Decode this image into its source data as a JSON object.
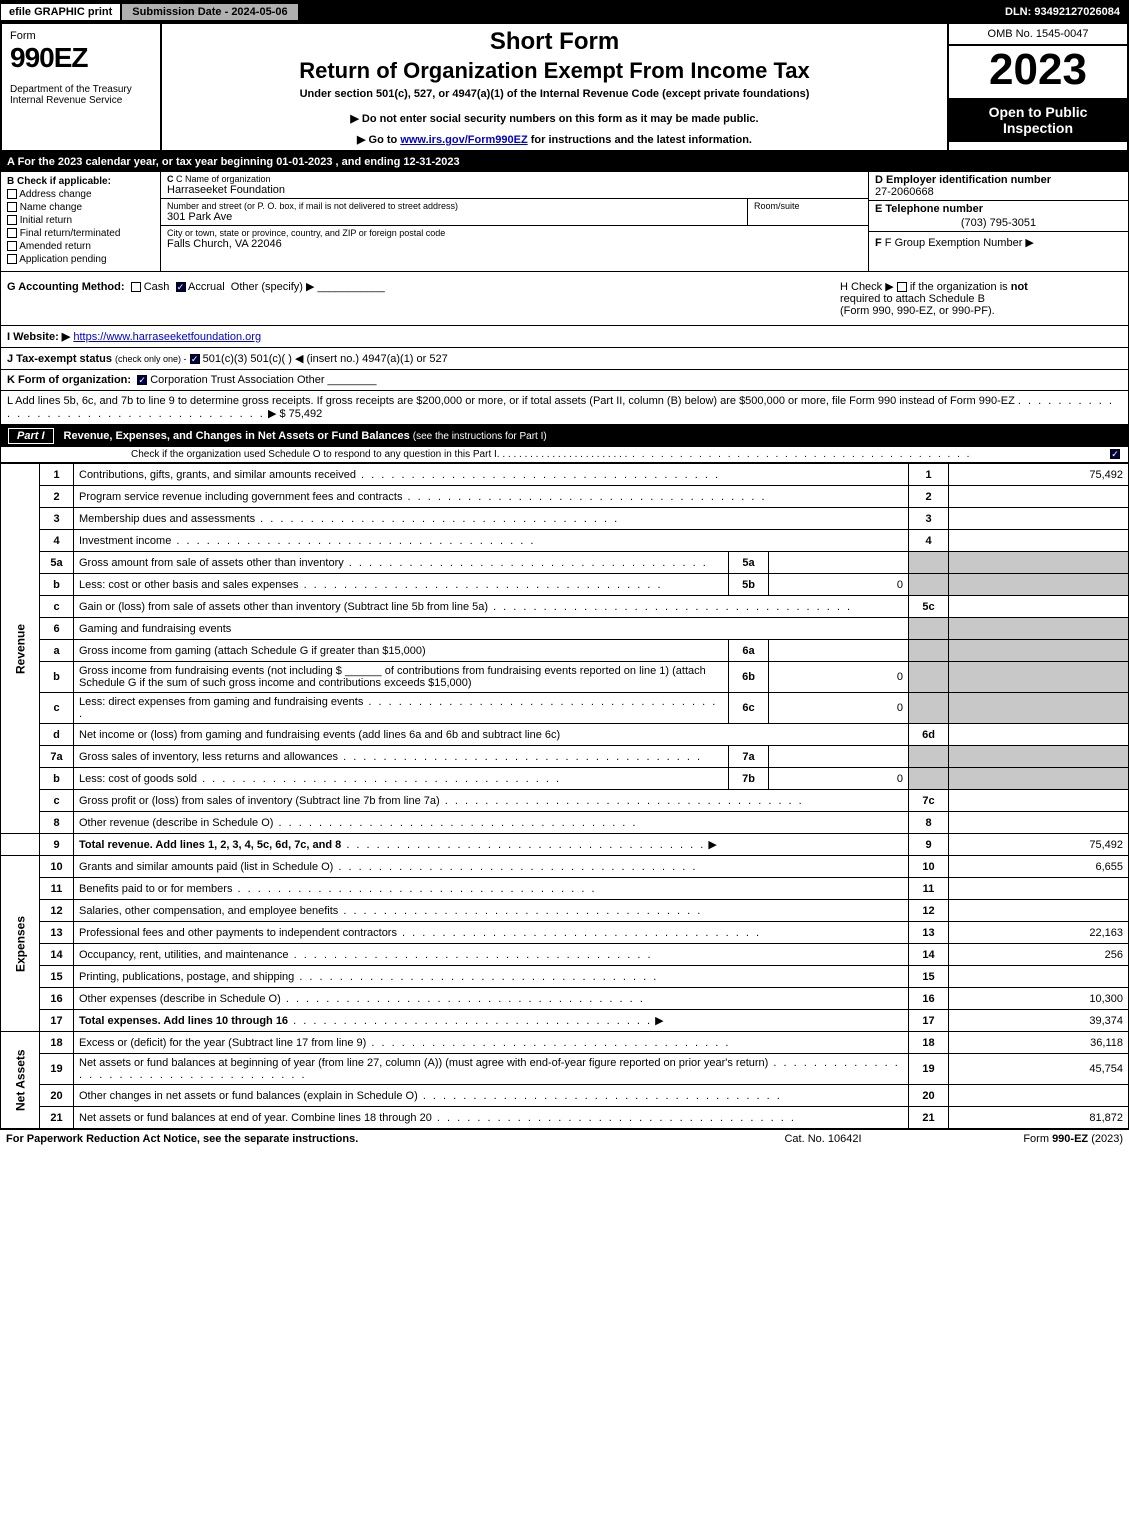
{
  "topbar": {
    "efile": "efile GRAPHIC print",
    "submission": "Submission Date - 2024-05-06",
    "dln": "DLN: 93492127026084"
  },
  "header": {
    "form_word": "Form",
    "form_num": "990EZ",
    "dept": "Department of the Treasury\nInternal Revenue Service",
    "short_form": "Short Form",
    "return_title": "Return of Organization Exempt From Income Tax",
    "under_section": "Under section 501(c), 527, or 4947(a)(1) of the Internal Revenue Code (except private foundations)",
    "donot": "Do not enter social security numbers on this form as it may be made public.",
    "goto_pre": "Go to ",
    "goto_link": "www.irs.gov/Form990EZ",
    "goto_post": " for instructions and the latest information.",
    "omb": "OMB No. 1545-0047",
    "year": "2023",
    "open": "Open to Public Inspection"
  },
  "row_a": "A  For the 2023 calendar year, or tax year beginning 01-01-2023 , and ending 12-31-2023",
  "sec_b": {
    "title": "B  Check if applicable:",
    "opts": [
      "Address change",
      "Name change",
      "Initial return",
      "Final return/terminated",
      "Amended return",
      "Application pending"
    ]
  },
  "sec_c": {
    "name_label": "C Name of organization",
    "name": "Harraseeket Foundation",
    "street_label": "Number and street (or P. O. box, if mail is not delivered to street address)",
    "street": "301 Park Ave",
    "room_label": "Room/suite",
    "city_label": "City or town, state or province, country, and ZIP or foreign postal code",
    "city": "Falls Church, VA  22046"
  },
  "sec_d": {
    "label": "D Employer identification number",
    "value": "27-2060668"
  },
  "sec_e": {
    "label": "E Telephone number",
    "value": "(703) 795-3051"
  },
  "sec_f": {
    "label": "F Group Exemption Number  ▶"
  },
  "sec_g": {
    "label": "G Accounting Method:",
    "cash": "Cash",
    "accrual": "Accrual",
    "other": "Other (specify) ▶"
  },
  "sec_h": {
    "text1": "H  Check ▶",
    "text2": "if the organization is",
    "text3": "not",
    "text4": "required to attach Schedule B",
    "text5": "(Form 990, 990-EZ, or 990-PF)."
  },
  "sec_i": {
    "label": "I Website: ▶",
    "url": "https://www.harraseeketfoundation.org"
  },
  "sec_j": {
    "label": "J Tax-exempt status",
    "sub": "(check only one) -",
    "opts": "501(c)(3)    501(c)(  ) ◀ (insert no.)    4947(a)(1) or    527"
  },
  "sec_k": {
    "label": "K Form of organization:",
    "opts": "Corporation    Trust    Association    Other"
  },
  "sec_l": {
    "text": "L Add lines 5b, 6c, and 7b to line 9 to determine gross receipts. If gross receipts are $200,000 or more, or if total assets (Part II, column (B) below) are $500,000 or more, file Form 990 instead of Form 990-EZ",
    "amount": "▶ $ 75,492"
  },
  "part1": {
    "label": "Part I",
    "title": "Revenue, Expenses, and Changes in Net Assets or Fund Balances",
    "sub": "(see the instructions for Part I)",
    "check_line": "Check if the organization used Schedule O to respond to any question in this Part I"
  },
  "side_labels": {
    "revenue": "Revenue",
    "expenses": "Expenses",
    "netassets": "Net Assets"
  },
  "lines": {
    "l1": {
      "n": "1",
      "d": "Contributions, gifts, grants, and similar amounts received",
      "v": "75,492"
    },
    "l2": {
      "n": "2",
      "d": "Program service revenue including government fees and contracts",
      "v": ""
    },
    "l3": {
      "n": "3",
      "d": "Membership dues and assessments",
      "v": ""
    },
    "l4": {
      "n": "4",
      "d": "Investment income",
      "v": ""
    },
    "l5a": {
      "n": "5a",
      "d": "Gross amount from sale of assets other than inventory",
      "sub": "5a",
      "sv": ""
    },
    "l5b": {
      "n": "b",
      "d": "Less: cost or other basis and sales expenses",
      "sub": "5b",
      "sv": "0"
    },
    "l5c": {
      "n": "c",
      "d": "Gain or (loss) from sale of assets other than inventory (Subtract line 5b from line 5a)",
      "rn": "5c",
      "v": ""
    },
    "l6": {
      "n": "6",
      "d": "Gaming and fundraising events"
    },
    "l6a": {
      "n": "a",
      "d": "Gross income from gaming (attach Schedule G if greater than $15,000)",
      "sub": "6a",
      "sv": ""
    },
    "l6b": {
      "n": "b",
      "d1": "Gross income from fundraising events (not including $",
      "d2": "of contributions from fundraising events reported on line 1) (attach Schedule G if the sum of such gross income and contributions exceeds $15,000)",
      "sub": "6b",
      "sv": "0"
    },
    "l6c": {
      "n": "c",
      "d": "Less: direct expenses from gaming and fundraising events",
      "sub": "6c",
      "sv": "0"
    },
    "l6d": {
      "n": "d",
      "d": "Net income or (loss) from gaming and fundraising events (add lines 6a and 6b and subtract line 6c)",
      "rn": "6d",
      "v": ""
    },
    "l7a": {
      "n": "7a",
      "d": "Gross sales of inventory, less returns and allowances",
      "sub": "7a",
      "sv": ""
    },
    "l7b": {
      "n": "b",
      "d": "Less: cost of goods sold",
      "sub": "7b",
      "sv": "0"
    },
    "l7c": {
      "n": "c",
      "d": "Gross profit or (loss) from sales of inventory (Subtract line 7b from line 7a)",
      "rn": "7c",
      "v": ""
    },
    "l8": {
      "n": "8",
      "d": "Other revenue (describe in Schedule O)",
      "v": ""
    },
    "l9": {
      "n": "9",
      "d": "Total revenue. Add lines 1, 2, 3, 4, 5c, 6d, 7c, and 8",
      "v": "75,492"
    },
    "l10": {
      "n": "10",
      "d": "Grants and similar amounts paid (list in Schedule O)",
      "v": "6,655"
    },
    "l11": {
      "n": "11",
      "d": "Benefits paid to or for members",
      "v": ""
    },
    "l12": {
      "n": "12",
      "d": "Salaries, other compensation, and employee benefits",
      "v": ""
    },
    "l13": {
      "n": "13",
      "d": "Professional fees and other payments to independent contractors",
      "v": "22,163"
    },
    "l14": {
      "n": "14",
      "d": "Occupancy, rent, utilities, and maintenance",
      "v": "256"
    },
    "l15": {
      "n": "15",
      "d": "Printing, publications, postage, and shipping",
      "v": ""
    },
    "l16": {
      "n": "16",
      "d": "Other expenses (describe in Schedule O)",
      "v": "10,300"
    },
    "l17": {
      "n": "17",
      "d": "Total expenses. Add lines 10 through 16",
      "v": "39,374"
    },
    "l18": {
      "n": "18",
      "d": "Excess or (deficit) for the year (Subtract line 17 from line 9)",
      "v": "36,118"
    },
    "l19": {
      "n": "19",
      "d": "Net assets or fund balances at beginning of year (from line 27, column (A)) (must agree with end-of-year figure reported on prior year's return)",
      "v": "45,754"
    },
    "l20": {
      "n": "20",
      "d": "Other changes in net assets or fund balances (explain in Schedule O)",
      "v": ""
    },
    "l21": {
      "n": "21",
      "d": "Net assets or fund balances at end of year. Combine lines 18 through 20",
      "v": "81,872"
    }
  },
  "footer": {
    "left": "For Paperwork Reduction Act Notice, see the separate instructions.",
    "mid": "Cat. No. 10642I",
    "right_pre": "Form ",
    "right_bold": "990-EZ",
    "right_post": " (2023)"
  }
}
